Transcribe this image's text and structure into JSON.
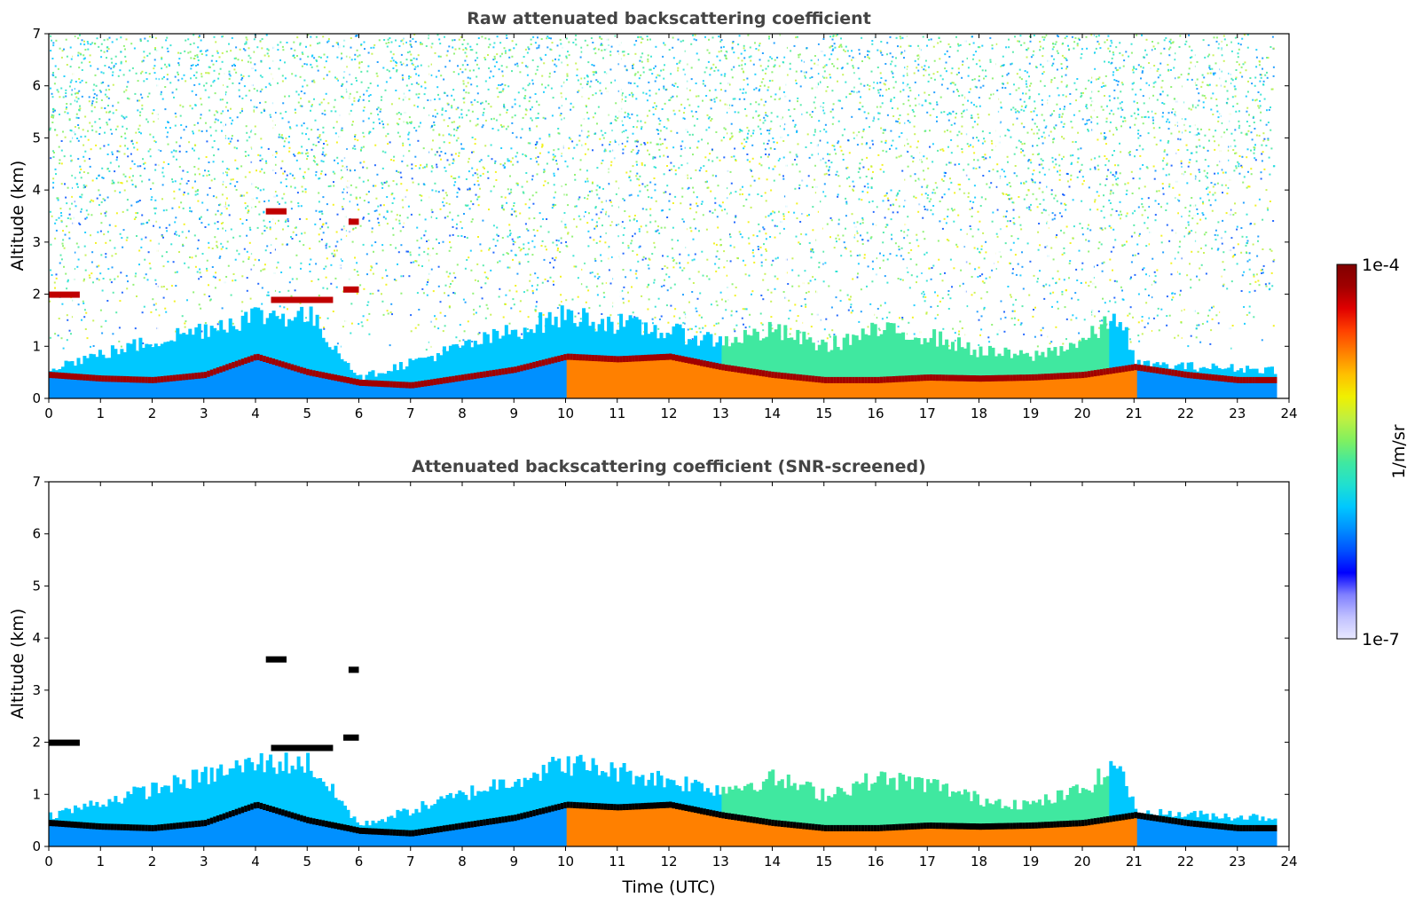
{
  "chart_data": [
    {
      "type": "heatmap",
      "title": "Raw attenuated backscattering coefficient",
      "xlabel": "",
      "ylabel": "Altitude (km)",
      "xlim": [
        0,
        24
      ],
      "ylim": [
        0,
        7
      ],
      "xticks": [
        "0",
        "1",
        "2",
        "3",
        "4",
        "5",
        "6",
        "7",
        "8",
        "9",
        "10",
        "11",
        "12",
        "13",
        "14",
        "15",
        "16",
        "17",
        "18",
        "19",
        "20",
        "21",
        "22",
        "23",
        "24"
      ],
      "yticks": [
        "0",
        "1",
        "2",
        "3",
        "4",
        "5",
        "6",
        "7"
      ],
      "data_end_time": 23.7,
      "boundary_layer_top_km": [
        [
          0,
          0.45
        ],
        [
          1,
          0.38
        ],
        [
          2,
          0.35
        ],
        [
          3,
          0.45
        ],
        [
          4,
          0.8
        ],
        [
          5,
          0.5
        ],
        [
          6,
          0.3
        ],
        [
          7,
          0.25
        ],
        [
          8,
          0.4
        ],
        [
          9,
          0.55
        ],
        [
          10,
          0.8
        ],
        [
          11,
          0.75
        ],
        [
          12,
          0.8
        ],
        [
          13,
          0.6
        ],
        [
          14,
          0.45
        ],
        [
          15,
          0.35
        ],
        [
          16,
          0.35
        ],
        [
          17,
          0.4
        ],
        [
          18,
          0.38
        ],
        [
          19,
          0.4
        ],
        [
          20,
          0.45
        ],
        [
          21,
          0.6
        ],
        [
          22,
          0.45
        ],
        [
          23,
          0.35
        ],
        [
          23.7,
          0.35
        ]
      ],
      "aerosol_layer_top_km": [
        [
          0,
          0.6
        ],
        [
          4,
          1.6
        ],
        [
          5,
          1.6
        ],
        [
          6,
          0.4
        ],
        [
          8,
          1.0
        ],
        [
          10,
          1.6
        ],
        [
          13,
          1.1
        ],
        [
          14,
          1.3
        ],
        [
          15,
          1.0
        ],
        [
          16,
          1.3
        ],
        [
          17,
          1.2
        ],
        [
          18,
          0.9
        ],
        [
          19,
          0.8
        ],
        [
          20,
          1.1
        ],
        [
          20.7,
          1.6
        ],
        [
          21,
          0.65
        ],
        [
          23.7,
          0.55
        ]
      ],
      "elevated_layers_km": [
        {
          "t_start": 0.0,
          "t_end": 0.6,
          "altitude": 2.0
        },
        {
          "t_start": 4.2,
          "t_end": 4.6,
          "altitude": 3.6
        },
        {
          "t_start": 5.8,
          "t_end": 6.0,
          "altitude": 3.4
        },
        {
          "t_start": 4.3,
          "t_end": 5.5,
          "altitude": 1.9
        },
        {
          "t_start": 5.7,
          "t_end": 6.0,
          "altitude": 2.1
        }
      ]
    },
    {
      "type": "heatmap",
      "title": "Attenuated backscattering coefficient (SNR-screened)",
      "xlabel": "Time (UTC)",
      "ylabel": "Altitude (km)",
      "xlim": [
        0,
        24
      ],
      "ylim": [
        0,
        7
      ],
      "xticks": [
        "0",
        "1",
        "2",
        "3",
        "4",
        "5",
        "6",
        "7",
        "8",
        "9",
        "10",
        "11",
        "12",
        "13",
        "14",
        "15",
        "16",
        "17",
        "18",
        "19",
        "20",
        "21",
        "22",
        "23",
        "24"
      ],
      "yticks": [
        "0",
        "1",
        "2",
        "3",
        "4",
        "5",
        "6",
        "7"
      ],
      "data_end_time": 23.7
    }
  ],
  "colorbar": {
    "label": "1/m/sr",
    "min_label": "1e-7",
    "max_label": "1e-4",
    "colors": [
      "#e8e8ff",
      "#c0c0ff",
      "#8080ff",
      "#0000ff",
      "#0050ff",
      "#0090ff",
      "#00c8ff",
      "#20e0d0",
      "#40e8a0",
      "#80f060",
      "#c0f040",
      "#f0f000",
      "#ffc000",
      "#ff8000",
      "#ff4000",
      "#e00000",
      "#a00000",
      "#800000"
    ]
  }
}
